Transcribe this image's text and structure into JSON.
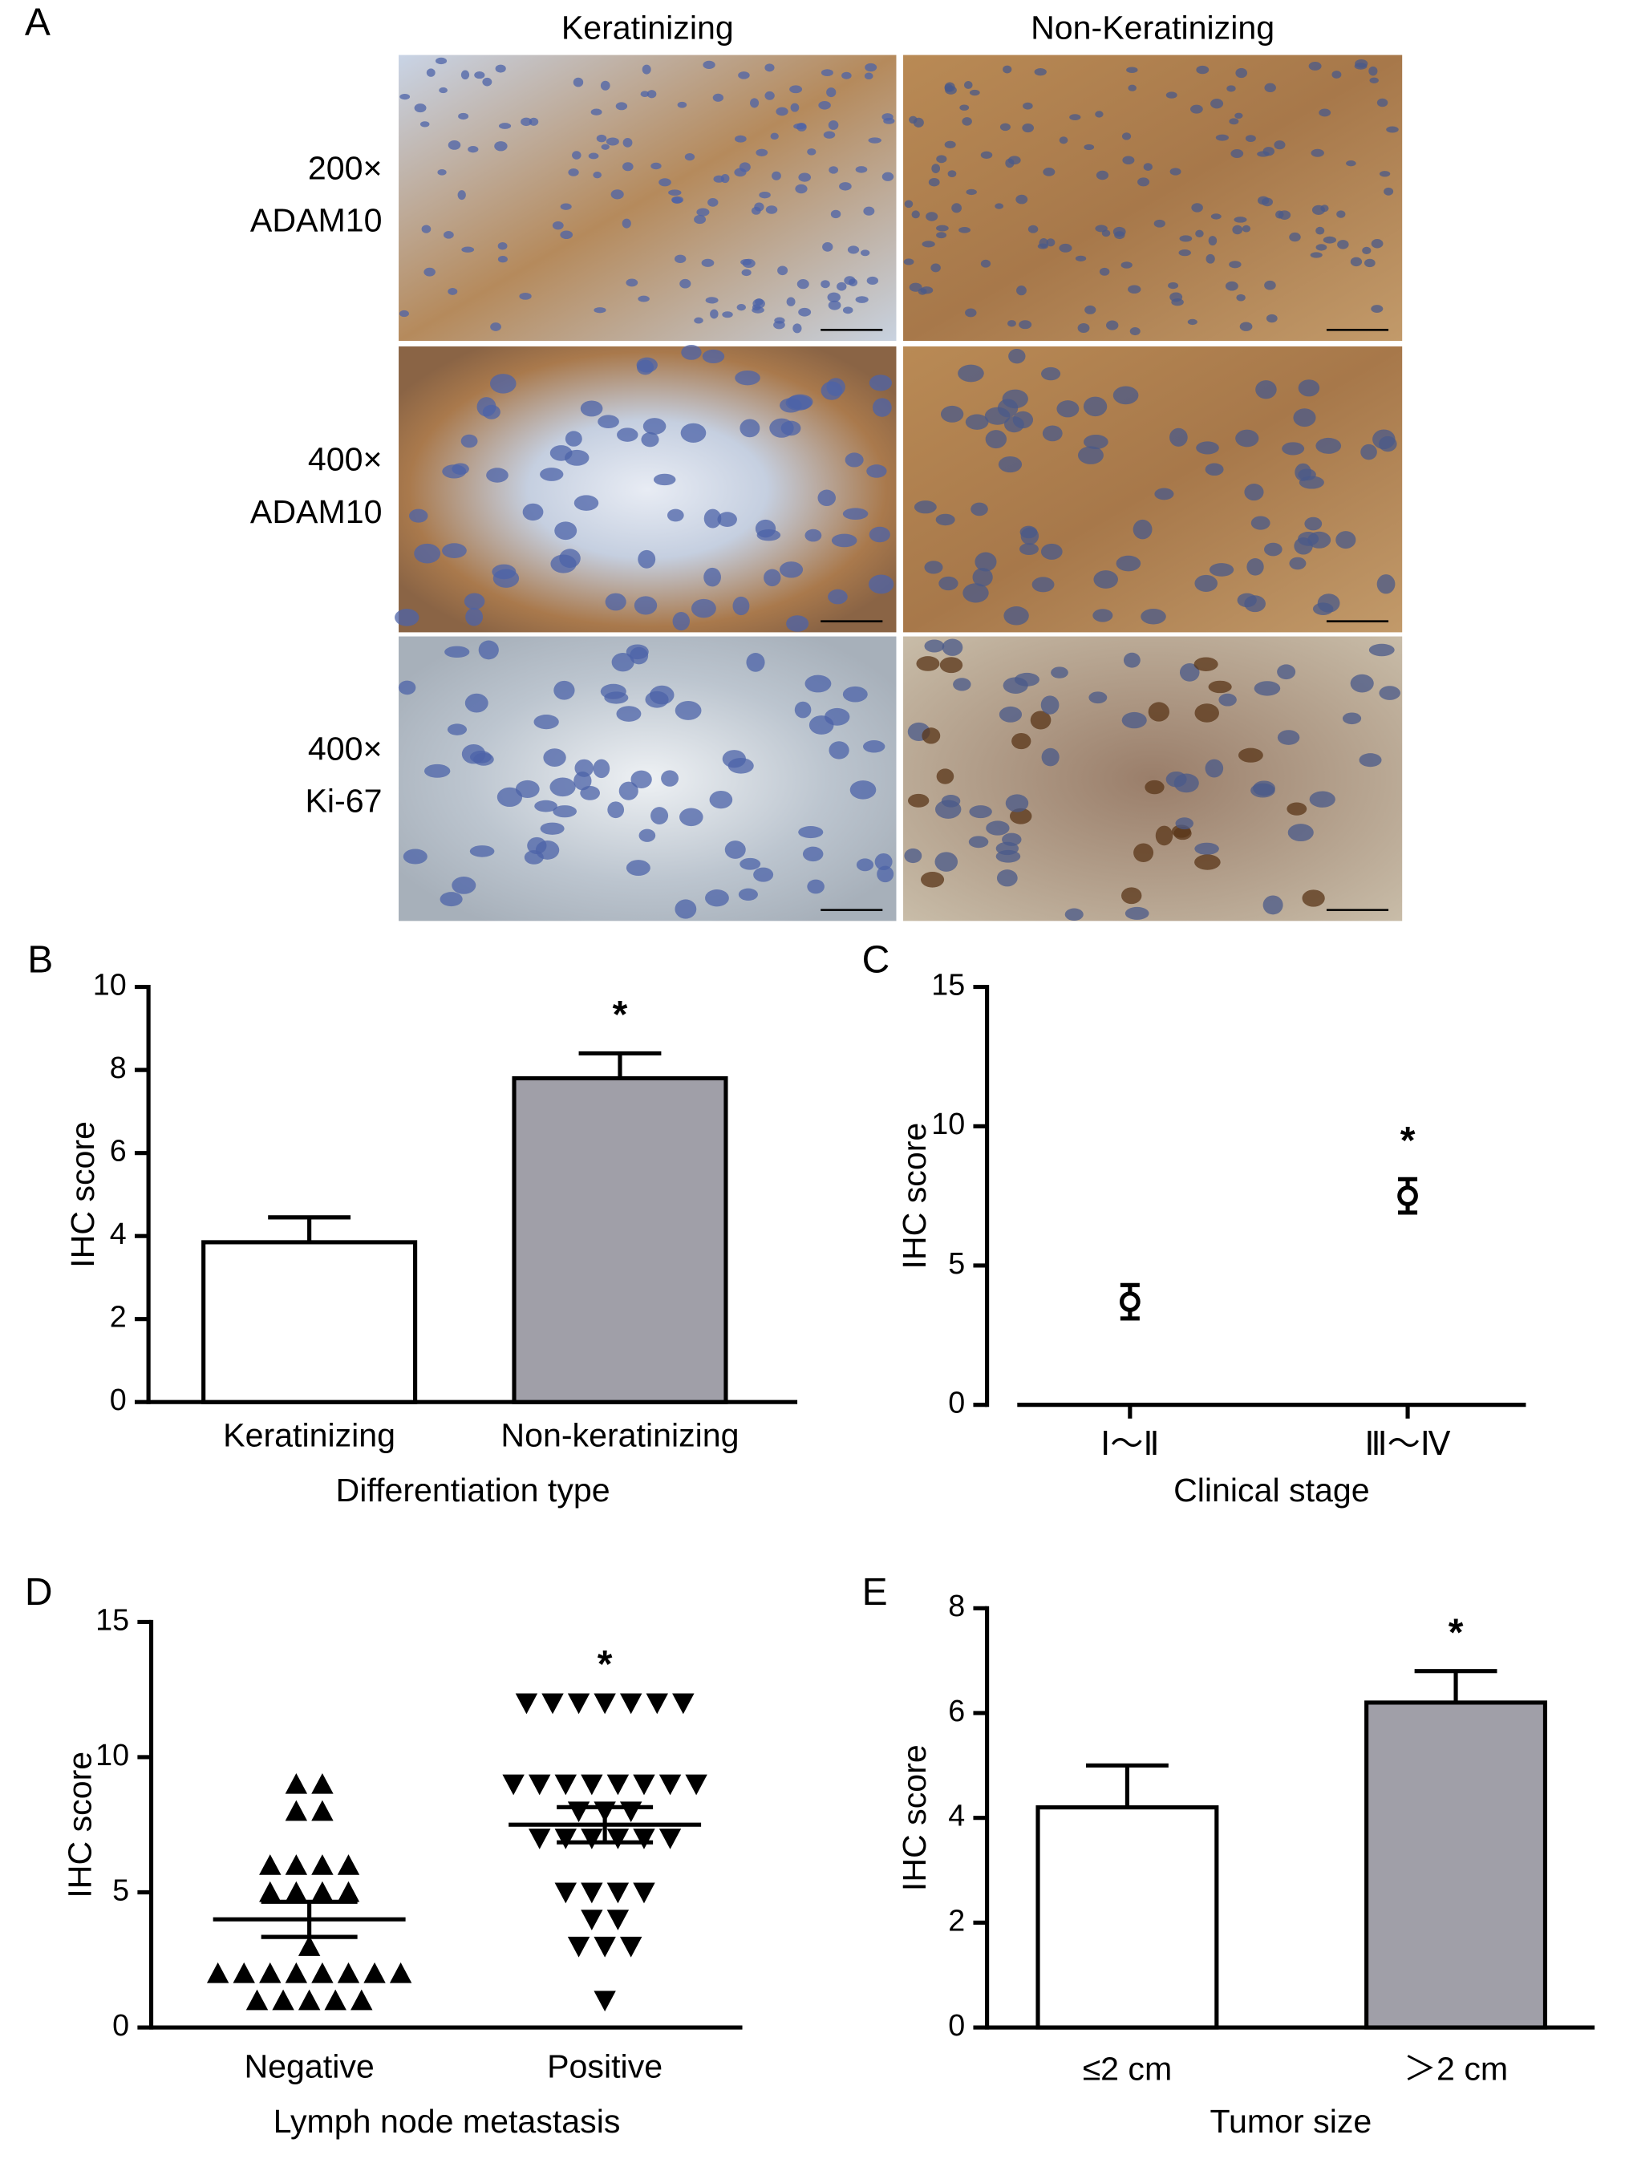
{
  "panel_a": {
    "label": "A",
    "columns": [
      "Keratinizing",
      "Non-Keratinizing"
    ],
    "rows": [
      [
        "200×",
        "ADAM10"
      ],
      [
        "400×",
        "ADAM10"
      ],
      [
        "400×",
        "Ki-67"
      ]
    ]
  },
  "chart_data": [
    {
      "type": "bar",
      "label": "B",
      "categories": [
        "Keratinizing",
        "Non-keratinizing"
      ],
      "values": [
        3.85,
        7.8
      ],
      "errors": [
        0.6,
        0.6
      ],
      "colors": [
        "#ffffff",
        "#a09fa8"
      ],
      "significant": [
        false,
        true
      ],
      "annotation": "*",
      "xlabel": "Differentiation  type",
      "ylabel": "IHC score",
      "ylim": [
        0,
        10
      ],
      "yticks": [
        0,
        2,
        4,
        6,
        8,
        10
      ]
    },
    {
      "type": "dot",
      "label": "C",
      "categories": [
        "Ⅰ～Ⅱ",
        "Ⅲ～Ⅳ"
      ],
      "values": [
        3.7,
        7.5
      ],
      "errors": [
        0.6,
        0.6
      ],
      "significant": [
        false,
        true
      ],
      "annotation": "*",
      "xlabel": "Clinical stage",
      "ylabel": "IHC score",
      "ylim": [
        0,
        15
      ],
      "yticks": [
        0,
        5,
        10,
        15
      ]
    },
    {
      "type": "strip",
      "label": "D",
      "categories": [
        "Negative",
        "Positive"
      ],
      "points": [
        [
          9,
          9,
          8,
          8,
          6,
          6,
          6,
          6,
          5,
          5,
          5,
          5,
          3,
          2,
          2,
          2,
          2,
          2,
          2,
          2,
          2,
          1,
          1,
          1,
          1,
          1
        ],
        [
          12,
          12,
          12,
          12,
          12,
          12,
          12,
          9,
          9,
          9,
          9,
          9,
          9,
          9,
          9,
          8,
          8,
          8,
          7,
          7,
          7,
          7,
          7,
          7,
          5,
          5,
          5,
          5,
          4,
          4,
          3,
          3,
          3,
          1
        ]
      ],
      "markers": [
        "triangle-up",
        "triangle-down"
      ],
      "values": [
        4.0,
        7.5
      ],
      "errors": [
        0.65,
        0.65
      ],
      "significant": [
        false,
        true
      ],
      "annotation": "*",
      "xlabel": "Lymph node metastasis",
      "ylabel": "IHC score",
      "ylim": [
        0,
        15
      ],
      "yticks": [
        0,
        5,
        10,
        15
      ]
    },
    {
      "type": "bar",
      "label": "E",
      "categories": [
        "≤2 cm",
        "＞2 cm"
      ],
      "values": [
        4.2,
        6.2
      ],
      "errors": [
        0.8,
        0.6
      ],
      "colors": [
        "#ffffff",
        "#a09fa8"
      ],
      "significant": [
        false,
        true
      ],
      "annotation": "*",
      "xlabel": "Tumor size",
      "ylabel": "IHC score",
      "ylim": [
        0,
        8
      ],
      "yticks": [
        0,
        2,
        4,
        6,
        8
      ]
    }
  ]
}
